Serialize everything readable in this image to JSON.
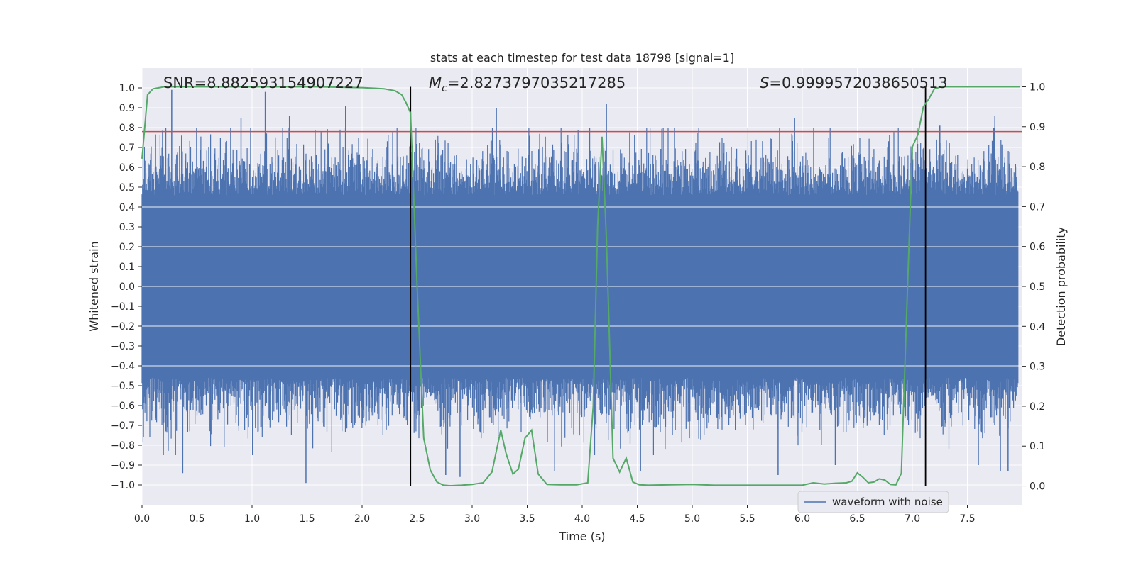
{
  "chart_data": {
    "type": "line",
    "title": "stats at each timestep for test data 18798 [signal=1]",
    "xlabel": "Time (s)",
    "ylabel": "Whitened strain",
    "y2label": "Detection probability",
    "xlim": [
      0.0,
      8.0
    ],
    "ylim": [
      -1.1,
      1.1
    ],
    "y2lim": [
      -0.047,
      1.047
    ],
    "xticks": [
      0.0,
      0.5,
      1.0,
      1.5,
      2.0,
      2.5,
      3.0,
      3.5,
      4.0,
      4.5,
      5.0,
      5.5,
      6.0,
      6.5,
      7.0,
      7.5
    ],
    "xtick_labels": [
      "0.0",
      "0.5",
      "1.0",
      "1.5",
      "2.0",
      "2.5",
      "3.0",
      "3.5",
      "4.0",
      "4.5",
      "5.0",
      "5.5",
      "6.0",
      "6.5",
      "7.0",
      "7.5"
    ],
    "yticks": [
      1.0,
      0.9,
      0.8,
      0.7,
      0.6,
      0.5,
      0.4,
      0.3,
      0.2,
      0.1,
      0.0,
      -0.1,
      -0.2,
      -0.3,
      -0.4,
      -0.5,
      -0.6,
      -0.7,
      -0.8,
      -0.9,
      -1.0
    ],
    "ytick_labels": [
      "1.0",
      "0.9",
      "0.8",
      "0.7",
      "0.6",
      "0.5",
      "0.4",
      "0.3",
      "0.2",
      "0.1",
      "0.0",
      "−0.1",
      "−0.2",
      "−0.3",
      "−0.4",
      "−0.5",
      "−0.6",
      "−0.7",
      "−0.8",
      "−0.9",
      "−1.0"
    ],
    "y2ticks": [
      1.0,
      0.9,
      0.8,
      0.7,
      0.6,
      0.5,
      0.4,
      0.3,
      0.2,
      0.1,
      0.0
    ],
    "y2tick_labels": [
      "1.0",
      "0.9",
      "0.8",
      "0.7",
      "0.6",
      "0.5",
      "0.4",
      "0.3",
      "0.2",
      "0.1",
      "0.0"
    ],
    "annotations": {
      "snr": "SNR=8.882593154907227",
      "mc_symbol": "M",
      "mc_sub": "c",
      "mc_value": "=2.8273797035217285",
      "s_symbol": "S",
      "s_value": "=0.9999572038650513"
    },
    "threshold_y": 0.78,
    "event_lines_x": [
      2.44,
      7.12
    ],
    "legend": {
      "label": "waveform with noise",
      "location": "lower-right"
    },
    "colors": {
      "background": "#eaeaf2",
      "grid": "#ffffff",
      "waveform": "#4c72b0",
      "probability": "#55a868",
      "threshold": "#c44e52",
      "event_line": "#000000"
    },
    "series": [
      {
        "name": "waveform with noise",
        "axis": "left",
        "style": "noise-band",
        "envelope_typical": [
          -0.46,
          0.46
        ],
        "envelope_extreme": [
          -1.0,
          1.0
        ],
        "peaks_x": [
          0.27,
          0.36,
          0.9,
          1.12,
          1.34,
          1.85,
          3.22,
          4.22,
          5.93,
          7.25,
          7.75
        ],
        "peaks_y": [
          0.99,
          0.76,
          0.85,
          0.98,
          0.86,
          0.91,
          0.9,
          0.92,
          0.85,
          0.81,
          0.86
        ],
        "troughs_x": [
          0.37,
          1.49,
          2.76,
          2.89,
          3.75,
          4.53,
          5.78,
          6.3,
          7.6,
          7.8,
          7.87
        ],
        "troughs_y": [
          -0.94,
          -0.99,
          -0.95,
          -0.96,
          -0.93,
          -0.93,
          -0.95,
          -0.9,
          -0.9,
          -0.93,
          -0.93
        ]
      },
      {
        "name": "detection probability",
        "axis": "right",
        "x": [
          0.0,
          0.05,
          0.1,
          0.2,
          0.4,
          0.8,
          1.2,
          1.6,
          2.0,
          2.2,
          2.3,
          2.36,
          2.4,
          2.44,
          2.5,
          2.56,
          2.62,
          2.68,
          2.74,
          2.8,
          2.9,
          3.0,
          3.1,
          3.18,
          3.26,
          3.31,
          3.37,
          3.42,
          3.48,
          3.54,
          3.6,
          3.68,
          3.8,
          3.95,
          4.05,
          4.1,
          4.14,
          4.18,
          4.22,
          4.28,
          4.34,
          4.4,
          4.46,
          4.52,
          4.6,
          4.8,
          5.0,
          5.2,
          5.6,
          6.0,
          6.1,
          6.2,
          6.3,
          6.4,
          6.45,
          6.5,
          6.55,
          6.6,
          6.65,
          6.7,
          6.75,
          6.8,
          6.85,
          6.9,
          6.95,
          7.0,
          7.05,
          7.1,
          7.15,
          7.2,
          7.26,
          7.32,
          7.4,
          7.6,
          7.8,
          7.98
        ],
        "values": [
          0.82,
          0.98,
          0.995,
          1.0,
          1.0,
          1.0,
          1.0,
          1.0,
          0.998,
          0.995,
          0.99,
          0.98,
          0.96,
          0.935,
          0.5,
          0.12,
          0.04,
          0.01,
          0.002,
          0.001,
          0.002,
          0.004,
          0.008,
          0.035,
          0.14,
          0.08,
          0.03,
          0.042,
          0.12,
          0.14,
          0.03,
          0.004,
          0.003,
          0.003,
          0.008,
          0.2,
          0.65,
          0.875,
          0.62,
          0.07,
          0.035,
          0.07,
          0.01,
          0.003,
          0.002,
          0.003,
          0.004,
          0.002,
          0.002,
          0.002,
          0.008,
          0.005,
          0.007,
          0.008,
          0.012,
          0.033,
          0.022,
          0.008,
          0.01,
          0.018,
          0.015,
          0.004,
          0.003,
          0.032,
          0.45,
          0.85,
          0.88,
          0.95,
          0.97,
          0.995,
          1.0,
          1.0,
          1.0,
          1.0,
          1.0,
          1.0
        ]
      }
    ]
  }
}
